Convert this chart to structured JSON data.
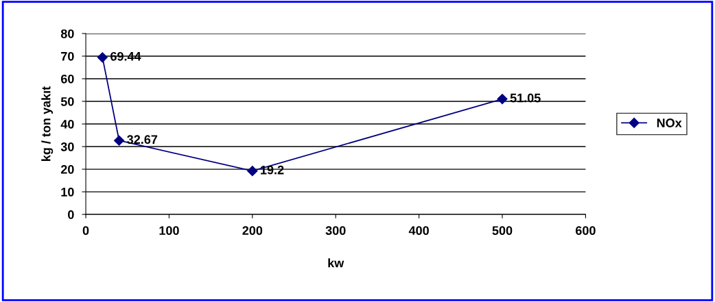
{
  "chart_data": {
    "type": "line",
    "xlabel": "kw",
    "ylabel": "kg / ton yakıt",
    "x": [
      20,
      40,
      200,
      500
    ],
    "series": [
      {
        "name": "NOx",
        "color": "#000080",
        "values": [
          69.44,
          32.67,
          19.2,
          51.05
        ]
      }
    ],
    "xlim": [
      0,
      600
    ],
    "xticks": [
      0,
      100,
      200,
      300,
      400,
      500,
      600
    ],
    "ylim": [
      0,
      80
    ],
    "yticks": [
      0,
      10,
      20,
      30,
      40,
      50,
      60,
      70,
      80
    ],
    "grid": "y",
    "legend": "right",
    "marker": "diamond",
    "line_style": "solid",
    "data_labels": true
  }
}
